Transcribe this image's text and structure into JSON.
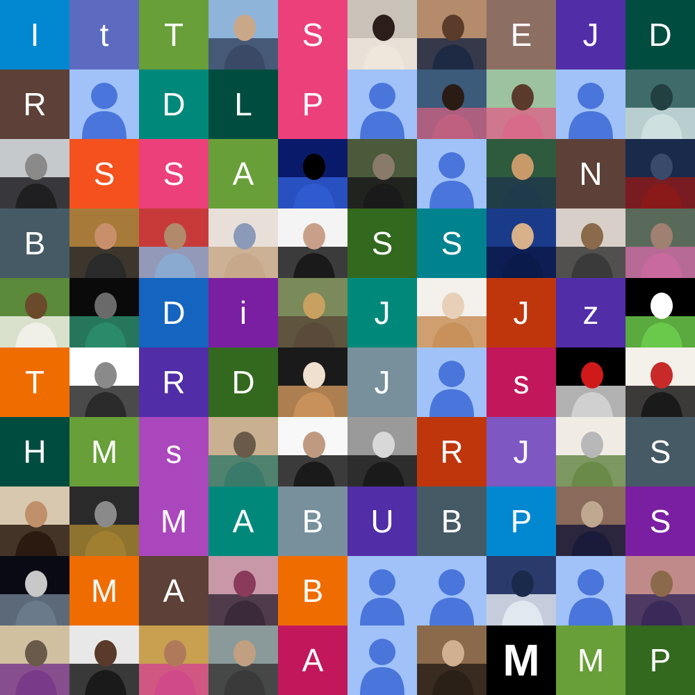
{
  "grid": {
    "columns": 10,
    "rows": 10,
    "tiles": [
      {
        "kind": "letter",
        "text": "I",
        "color": "#0288d1"
      },
      {
        "kind": "letter",
        "text": "t",
        "color": "#5c6bc0"
      },
      {
        "kind": "letter",
        "text": "T",
        "color": "#689f38"
      },
      {
        "kind": "photo",
        "subject": "man-with-motorcycle-photo",
        "colors": [
          "#8fb4d9",
          "#3a4a66",
          "#c9a88a"
        ]
      },
      {
        "kind": "letter",
        "text": "S",
        "color": "#ec407a"
      },
      {
        "kind": "photo",
        "subject": "woman-with-flowers-photo",
        "colors": [
          "#c8c2b8",
          "#efe6dc",
          "#2b1e1a"
        ]
      },
      {
        "kind": "photo",
        "subject": "man-portrait-photo",
        "colors": [
          "#b48c6c",
          "#1e2a44",
          "#5b3b2a"
        ]
      },
      {
        "kind": "letter",
        "text": "E",
        "color": "#8d6e63"
      },
      {
        "kind": "letter",
        "text": "J",
        "color": "#512da8"
      },
      {
        "kind": "letter",
        "text": "D",
        "color": "#004d40"
      },
      {
        "kind": "letter",
        "text": "R",
        "color": "#5d4037"
      },
      {
        "kind": "default-avatar"
      },
      {
        "kind": "letter",
        "text": "D",
        "color": "#00897b"
      },
      {
        "kind": "letter",
        "text": "L",
        "color": "#004d40"
      },
      {
        "kind": "letter",
        "text": "P",
        "color": "#ec407a"
      },
      {
        "kind": "default-avatar"
      },
      {
        "kind": "photo",
        "subject": "man-in-pink-shirt-photo",
        "colors": [
          "#3c5a7a",
          "#c06080",
          "#2a1c14"
        ]
      },
      {
        "kind": "photo",
        "subject": "woman-outdoor-photo",
        "colors": [
          "#9cc2a0",
          "#d86a8a",
          "#5a3a2a"
        ]
      },
      {
        "kind": "default-avatar"
      },
      {
        "kind": "photo",
        "subject": "pegasus-art-photo",
        "colors": [
          "#3f6b6b",
          "#cfe0e0",
          "#22403f"
        ]
      },
      {
        "kind": "photo",
        "subject": "man-on-scooter-photo",
        "colors": [
          "#c6c9cc",
          "#1f1f22",
          "#8a8a8a"
        ]
      },
      {
        "kind": "letter",
        "text": "S",
        "color": "#f4511e"
      },
      {
        "kind": "letter",
        "text": "S",
        "color": "#ec407a"
      },
      {
        "kind": "letter",
        "text": "A",
        "color": "#689f38"
      },
      {
        "kind": "photo",
        "subject": "blue-sky-reflection-photo",
        "colors": [
          "#0a1a6a",
          "#2f5bd0",
          "#000000"
        ]
      },
      {
        "kind": "photo",
        "subject": "man-with-plants-photo",
        "colors": [
          "#4a5a3a",
          "#1a1a1a",
          "#8a7a6a"
        ]
      },
      {
        "kind": "default-avatar"
      },
      {
        "kind": "photo",
        "subject": "boy-in-forest-photo",
        "colors": [
          "#2e5a3e",
          "#1f3a4a",
          "#c89a6a"
        ]
      },
      {
        "kind": "letter",
        "text": "N",
        "color": "#5d4037"
      },
      {
        "kind": "photo",
        "subject": "superhero-photo",
        "colors": [
          "#1a2a4a",
          "#8a1a1a",
          "#3a4a6a"
        ]
      },
      {
        "kind": "letter",
        "text": "B",
        "color": "#455a64"
      },
      {
        "kind": "photo",
        "subject": "smiling-man-photo",
        "colors": [
          "#a87a3a",
          "#2a2a2a",
          "#c8906a"
        ]
      },
      {
        "kind": "photo",
        "subject": "older-man-photo",
        "colors": [
          "#c83a3a",
          "#8aaad0",
          "#b08a6a"
        ]
      },
      {
        "kind": "photo",
        "subject": "woman-heart-hands-photo",
        "colors": [
          "#e8e0d8",
          "#c8a88a",
          "#8a9ab8"
        ]
      },
      {
        "kind": "photo",
        "subject": "man-in-suit-photo",
        "colors": [
          "#f4f4f4",
          "#1a1a1a",
          "#c8a08a"
        ]
      },
      {
        "kind": "letter",
        "text": "S",
        "color": "#33691e"
      },
      {
        "kind": "letter",
        "text": "S",
        "color": "#00838f"
      },
      {
        "kind": "photo",
        "subject": "student-portrait-photo",
        "colors": [
          "#1a3a8a",
          "#0a1a4a",
          "#d8b08a"
        ]
      },
      {
        "kind": "photo",
        "subject": "boy-at-table-photo",
        "colors": [
          "#d8d0c8",
          "#3a3a3a",
          "#8a6a4a"
        ]
      },
      {
        "kind": "photo",
        "subject": "man-pink-shirt-photo",
        "colors": [
          "#5a6a5a",
          "#c86aa0",
          "#a08070"
        ]
      },
      {
        "kind": "photo",
        "subject": "man-in-field-photo",
        "colors": [
          "#5a8a3a",
          "#f0f0e8",
          "#6a4a2a"
        ]
      },
      {
        "kind": "photo",
        "subject": "man-on-bike-night-photo",
        "colors": [
          "#0a0a0a",
          "#2a8a6a",
          "#6a6a6a"
        ]
      },
      {
        "kind": "letter",
        "text": "D",
        "color": "#1565c0"
      },
      {
        "kind": "letter",
        "text": "i",
        "color": "#7b1fa2"
      },
      {
        "kind": "photo",
        "subject": "game-screenshot-photo",
        "colors": [
          "#7a8a5a",
          "#5a4a3a",
          "#c8a060"
        ]
      },
      {
        "kind": "letter",
        "text": "J",
        "color": "#00897b"
      },
      {
        "kind": "photo",
        "subject": "sleeping-kitten-photo",
        "colors": [
          "#f4f0ec",
          "#c8905a",
          "#e8d0b8"
        ]
      },
      {
        "kind": "letter",
        "text": "J",
        "color": "#bf360c"
      },
      {
        "kind": "letter",
        "text": "z",
        "color": "#512da8"
      },
      {
        "kind": "photo",
        "subject": "cartoon-frog-photo",
        "colors": [
          "#000000",
          "#6ac84a",
          "#ffffff"
        ]
      },
      {
        "kind": "letter",
        "text": "T",
        "color": "#ef6c00"
      },
      {
        "kind": "photo",
        "subject": "monogram-logo-photo",
        "colors": [
          "#ffffff",
          "#2a2a2a",
          "#8a8a8a"
        ]
      },
      {
        "kind": "letter",
        "text": "R",
        "color": "#512da8"
      },
      {
        "kind": "letter",
        "text": "D",
        "color": "#33691e"
      },
      {
        "kind": "photo",
        "subject": "woman-with-dog-photo",
        "colors": [
          "#1a1a1a",
          "#c8905a",
          "#f0e0d0"
        ]
      },
      {
        "kind": "letter",
        "text": "J",
        "color": "#78909c"
      },
      {
        "kind": "default-avatar"
      },
      {
        "kind": "letter",
        "text": "s",
        "color": "#c2185b"
      },
      {
        "kind": "photo",
        "subject": "gt-logo-photo",
        "colors": [
          "#000000",
          "#d0d0d0",
          "#d01a1a"
        ]
      },
      {
        "kind": "photo",
        "subject": "koi-fish-art-photo",
        "colors": [
          "#f4f0ea",
          "#1a1a1a",
          "#c82a2a"
        ]
      },
      {
        "kind": "letter",
        "text": "H",
        "color": "#004d40"
      },
      {
        "kind": "letter",
        "text": "M",
        "color": "#689f38"
      },
      {
        "kind": "letter",
        "text": "s",
        "color": "#ab47bc"
      },
      {
        "kind": "photo",
        "subject": "man-mirror-selfie-photo",
        "colors": [
          "#c8b090",
          "#3a7a6a",
          "#6a5a4a"
        ]
      },
      {
        "kind": "photo",
        "subject": "woman-white-top-photo",
        "colors": [
          "#f8f8f8",
          "#1a1a1a",
          "#c09a80"
        ]
      },
      {
        "kind": "photo",
        "subject": "man-black-white-photo",
        "colors": [
          "#9a9a9a",
          "#1a1a1a",
          "#d8d8d8"
        ]
      },
      {
        "kind": "letter",
        "text": "R",
        "color": "#bf360c"
      },
      {
        "kind": "letter",
        "text": "J",
        "color": "#7e57c2"
      },
      {
        "kind": "photo",
        "subject": "rabbit-art-photo",
        "colors": [
          "#f0ece4",
          "#6a8a4a",
          "#b8b8b8"
        ]
      },
      {
        "kind": "letter",
        "text": "S",
        "color": "#455a64"
      },
      {
        "kind": "photo",
        "subject": "young-man-portrait-photo",
        "colors": [
          "#d8c8b0",
          "#2a1a10",
          "#c0906a"
        ]
      },
      {
        "kind": "photo",
        "subject": "masked-figure-photo",
        "colors": [
          "#2a2a2a",
          "#a08030",
          "#8a8a8a"
        ]
      },
      {
        "kind": "letter",
        "text": "M",
        "color": "#ab47bc"
      },
      {
        "kind": "letter",
        "text": "A",
        "color": "#00897b"
      },
      {
        "kind": "letter",
        "text": "B",
        "color": "#78909c"
      },
      {
        "kind": "letter",
        "text": "U",
        "color": "#512da8"
      },
      {
        "kind": "letter",
        "text": "B",
        "color": "#455a64"
      },
      {
        "kind": "letter",
        "text": "P",
        "color": "#0288d1"
      },
      {
        "kind": "photo",
        "subject": "man-on-street-photo",
        "colors": [
          "#8a6a5a",
          "#1a1a3a",
          "#c0a890"
        ]
      },
      {
        "kind": "letter",
        "text": "S",
        "color": "#7b1fa2"
      },
      {
        "kind": "photo",
        "subject": "city-night-photo",
        "colors": [
          "#0a0a14",
          "#6a7a8a",
          "#c8c8c8"
        ]
      },
      {
        "kind": "letter",
        "text": "M",
        "color": "#ef6c00"
      },
      {
        "kind": "letter",
        "text": "A",
        "color": "#5d4037"
      },
      {
        "kind": "photo",
        "subject": "couple-photo",
        "colors": [
          "#c898a8",
          "#3a2a3a",
          "#8a3a5a"
        ]
      },
      {
        "kind": "letter",
        "text": "B",
        "color": "#ef6c00"
      },
      {
        "kind": "default-avatar"
      },
      {
        "kind": "default-avatar"
      },
      {
        "kind": "photo",
        "subject": "cartoon-bird-photo",
        "colors": [
          "#2a3a6a",
          "#e0e8f0",
          "#1a2a4a"
        ]
      },
      {
        "kind": "default-avatar"
      },
      {
        "kind": "photo",
        "subject": "man-in-striped-shirt-photo",
        "colors": [
          "#c08a8a",
          "#3a2a5a",
          "#8a6a4a"
        ]
      },
      {
        "kind": "photo",
        "subject": "man-on-beach-photo",
        "colors": [
          "#d0c0a0",
          "#7a3a8a",
          "#6a5a4a"
        ]
      },
      {
        "kind": "photo",
        "subject": "man-in-hat-photo",
        "colors": [
          "#e8e8e8",
          "#1a1a1a",
          "#5a3a2a"
        ]
      },
      {
        "kind": "photo",
        "subject": "woman-in-saree-photo",
        "colors": [
          "#c8a050",
          "#d04a8a",
          "#b07a5a"
        ]
      },
      {
        "kind": "photo",
        "subject": "man-with-bike-photo",
        "colors": [
          "#8a9a9a",
          "#3a3a3a",
          "#c0a080"
        ]
      },
      {
        "kind": "letter",
        "text": "A",
        "color": "#c2185b"
      },
      {
        "kind": "default-avatar"
      },
      {
        "kind": "photo",
        "subject": "father-and-child-photo",
        "colors": [
          "#8a6a4a",
          "#2a2018",
          "#d0b090"
        ]
      },
      {
        "kind": "letter",
        "text": "M",
        "color": "#000000",
        "heavy": true
      },
      {
        "kind": "letter",
        "text": "M",
        "color": "#689f38"
      },
      {
        "kind": "letter",
        "text": "P",
        "color": "#33691e"
      }
    ]
  },
  "default_avatar": {
    "background": "#a0c2f9",
    "figure": "#4a76db"
  }
}
